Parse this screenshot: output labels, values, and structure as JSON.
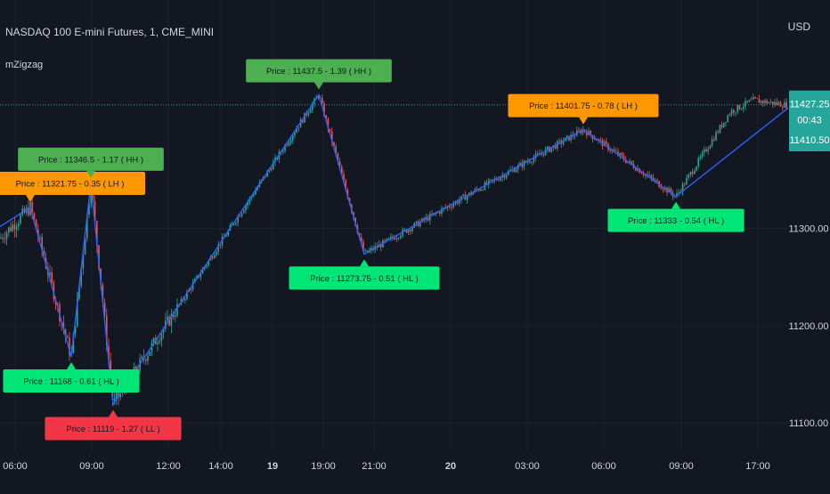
{
  "header": {
    "symbol_title": "NASDAQ 100 E-mini Futures, 1, CME_MINI",
    "indicator_name": "mZigzag",
    "currency": "USD"
  },
  "chart_data": {
    "type": "candlestick",
    "ylim": [
      11070,
      11535
    ],
    "y_ticks": [
      "11100.00",
      "11200.00",
      "11300.00"
    ],
    "x_ticks": [
      {
        "label": "06:00",
        "bold": false
      },
      {
        "label": "09:00",
        "bold": false
      },
      {
        "label": "12:00",
        "bold": false
      },
      {
        "label": "14:00",
        "bold": false
      },
      {
        "label": "19",
        "bold": true
      },
      {
        "label": "19:00",
        "bold": false
      },
      {
        "label": "21:00",
        "bold": false
      },
      {
        "label": "20",
        "bold": true
      },
      {
        "label": "03:00",
        "bold": false
      },
      {
        "label": "06:00",
        "bold": false
      },
      {
        "label": "09:00",
        "bold": false
      },
      {
        "label": "17:00",
        "bold": false
      }
    ],
    "last_price": {
      "price": "11427.25",
      "countdown": "00:43",
      "value": 11427.25
    },
    "secondary_price": "11410.50",
    "pivots": [
      {
        "x": "06:30",
        "y": 11321.75,
        "type": "high",
        "label": "Price : 11321.75 - 0.35 ( LH )",
        "color": "#ff9800"
      },
      {
        "x": "08:10",
        "y": 11168,
        "type": "low",
        "label": "Price : 11168 - 0.61 ( HL )",
        "color": "#00e676"
      },
      {
        "x": "08:55",
        "y": 11346.5,
        "type": "high",
        "label": "Price : 11346.5 - 1.17 ( HH )",
        "color": "#4caf50"
      },
      {
        "x": "09:45",
        "y": 11119,
        "type": "low",
        "label": "Price : 11119 - 1.27 ( LL )",
        "color": "#f23645"
      },
      {
        "x": "19:00",
        "y": 11437.5,
        "type": "high",
        "label": "Price : 11437.5 - 1.39 ( HH )",
        "color": "#4caf50"
      },
      {
        "x": "20:40",
        "y": 11273.75,
        "type": "low",
        "label": "Price : 11273.75 - 0.51 ( HL )",
        "color": "#00e676"
      },
      {
        "x": "05:30",
        "y": 11401.75,
        "type": "high",
        "label": "Price : 11401.75 - 0.78 ( LH )",
        "color": "#ff9800"
      },
      {
        "x": "09:00",
        "y": 11333,
        "type": "low",
        "label": "Price : 11333 - 0.54 ( HL )",
        "color": "#00e676"
      }
    ],
    "colors": {
      "up": "#26a69a",
      "down": "#ef5350",
      "zigzag": "#2962ff",
      "price_tag": "#26a69a",
      "background": "#131722",
      "grid": "#1e222d",
      "text": "#d1d4dc"
    }
  }
}
